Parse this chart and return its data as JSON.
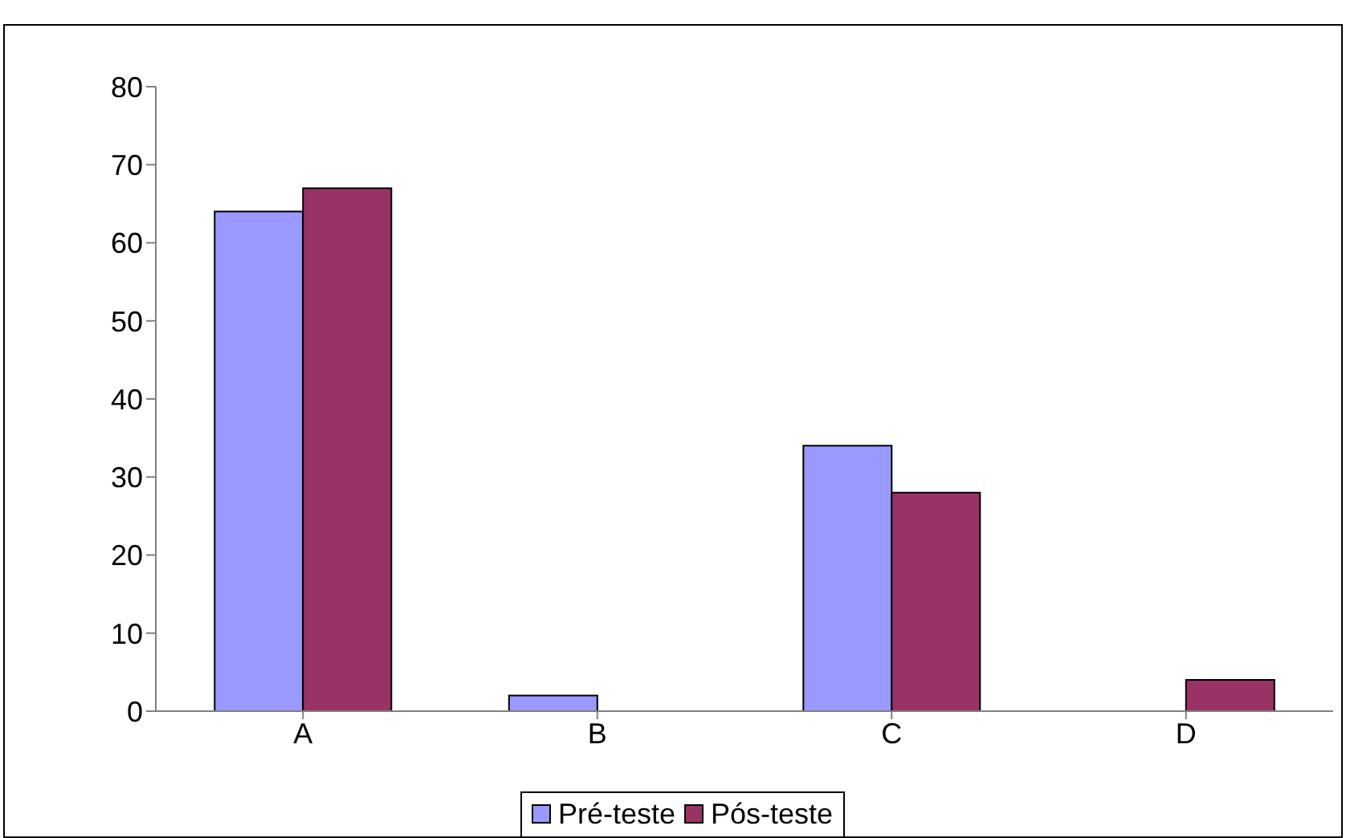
{
  "chart_data": {
    "type": "bar",
    "categories": [
      "A",
      "B",
      "C",
      "D"
    ],
    "series": [
      {
        "name": "Pré-teste",
        "color": "#9999ff",
        "values": [
          64,
          2,
          34,
          0
        ]
      },
      {
        "name": "Pós-teste",
        "color": "#993366",
        "values": [
          67,
          0,
          28,
          4
        ]
      }
    ],
    "ylim": [
      0,
      80
    ],
    "yticks": [
      0,
      10,
      20,
      30,
      40,
      50,
      60,
      70,
      80
    ],
    "legend": "bottom"
  }
}
